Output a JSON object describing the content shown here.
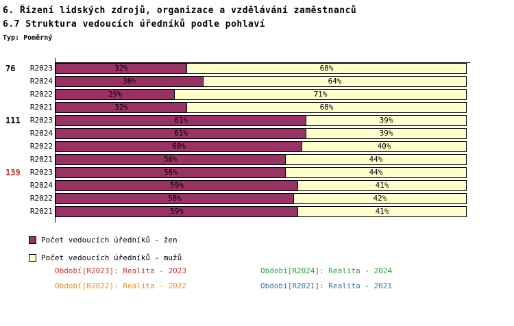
{
  "header": {
    "title_line1": "6. Řízení lidských zdrojů, organizace a vzdělávání zaměstnanců",
    "title_line2": "6.7 Struktura vedoucích úředníků podle pohlaví",
    "type_label": "Typ: Poměrný"
  },
  "colors": {
    "women": "#993366",
    "men": "#FFFFCC",
    "axis": "#000000",
    "total_red": "#CC2222",
    "total_black": "#000000"
  },
  "chart_data": {
    "type": "bar",
    "orientation": "horizontal-stacked",
    "x_max": 100,
    "unit": "%",
    "legend_position": "bottom-left",
    "groups": [
      {
        "total": "76",
        "total_color": "#000000",
        "rows": [
          {
            "period": "R2023",
            "women": 32,
            "men": 68,
            "women_label": "32%",
            "men_label": "68%"
          },
          {
            "period": "R2024",
            "women": 36,
            "men": 64,
            "women_label": "36%",
            "men_label": "64%"
          },
          {
            "period": "R2022",
            "women": 29,
            "men": 71,
            "women_label": "29%",
            "men_label": "71%"
          },
          {
            "period": "R2021",
            "women": 32,
            "men": 68,
            "women_label": "32%",
            "men_label": "68%"
          }
        ]
      },
      {
        "total": "111",
        "total_color": "#000000",
        "rows": [
          {
            "period": "R2023",
            "women": 61,
            "men": 39,
            "women_label": "61%",
            "men_label": "39%"
          },
          {
            "period": "R2024",
            "women": 61,
            "men": 39,
            "women_label": "61%",
            "men_label": "39%"
          },
          {
            "period": "R2022",
            "women": 60,
            "men": 40,
            "women_label": "60%",
            "men_label": "40%"
          },
          {
            "period": "R2021",
            "women": 56,
            "men": 44,
            "women_label": "56%",
            "men_label": "44%"
          }
        ]
      },
      {
        "total": "139",
        "total_color": "#CC2222",
        "rows": [
          {
            "period": "R2023",
            "women": 56,
            "men": 44,
            "women_label": "56%",
            "men_label": "44%"
          },
          {
            "period": "R2024",
            "women": 59,
            "men": 41,
            "women_label": "59%",
            "men_label": "41%"
          },
          {
            "period": "R2022",
            "women": 58,
            "men": 42,
            "women_label": "58%",
            "men_label": "42%"
          },
          {
            "period": "R2021",
            "women": 59,
            "men": 41,
            "women_label": "59%",
            "men_label": "41%"
          }
        ]
      }
    ],
    "legend": [
      {
        "label": "Počet vedoucích úředníků - žen",
        "color": "#993366"
      },
      {
        "label": "Počet vedoucích úředníků - mužů",
        "color": "#FFFFCC"
      }
    ]
  },
  "period_legend": [
    {
      "label": "Období[R2023]: Realita - 2023",
      "color": "#CC3333"
    },
    {
      "label": "Období[R2024]: Realita - 2024",
      "color": "#2F9E3C"
    },
    {
      "label": "Období[R2022]: Realita - 2022",
      "color": "#EF8C20"
    },
    {
      "label": "Období[R2021]: Realita - 2021",
      "color": "#2878A8"
    }
  ]
}
